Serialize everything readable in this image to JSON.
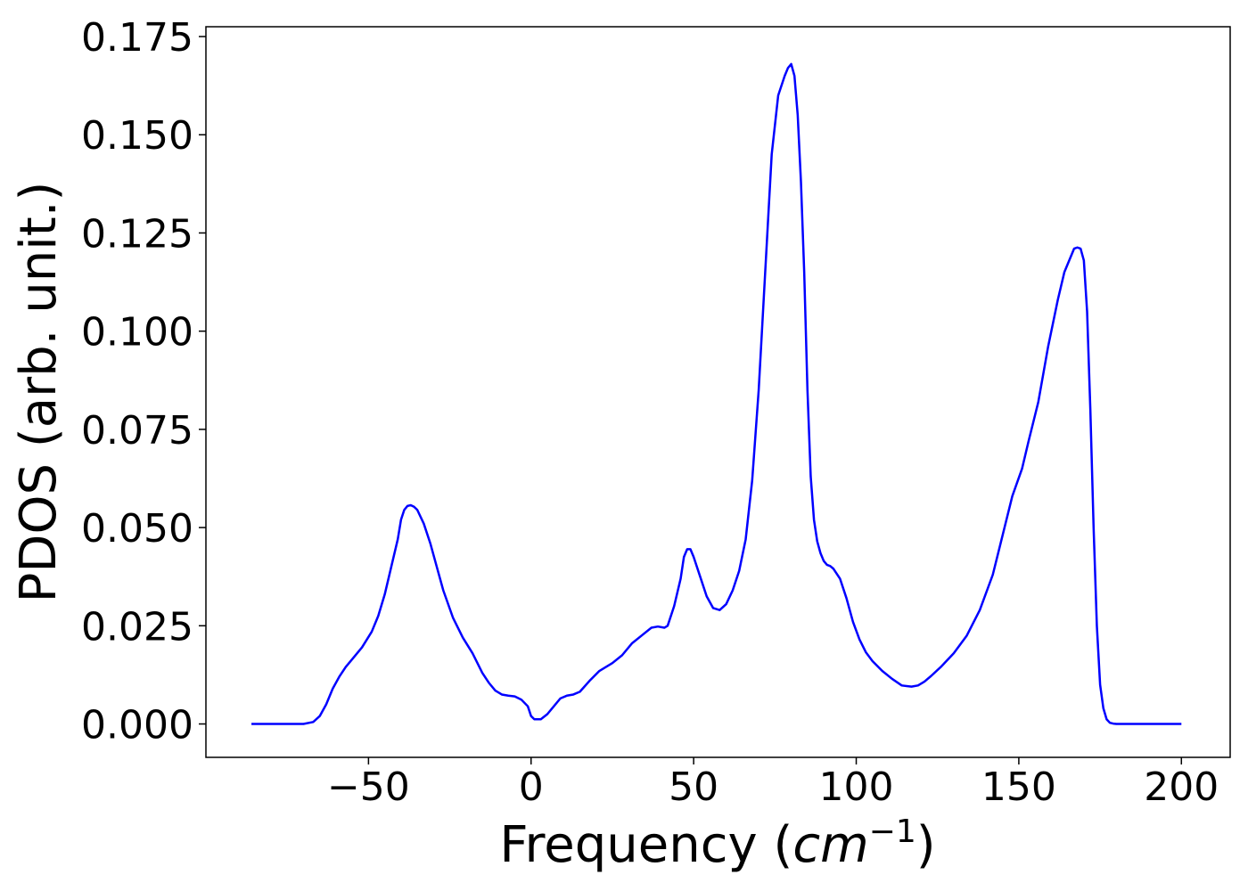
{
  "chart_data": {
    "type": "line",
    "title": "",
    "xlabel_prefix": "Frequency (",
    "xlabel_unit": "cm",
    "xlabel_exponent": "−1",
    "xlabel_suffix": ")",
    "ylabel": "PDOS (arb. unit.)",
    "xlim": [
      -100,
      215
    ],
    "ylim": [
      -0.0085,
      0.1775
    ],
    "xticks": [
      -50,
      0,
      50,
      100,
      150,
      200
    ],
    "xtick_labels": [
      "−50",
      "0",
      "50",
      "100",
      "150",
      "200"
    ],
    "yticks": [
      0.0,
      0.025,
      0.05,
      0.075,
      0.1,
      0.125,
      0.15,
      0.175
    ],
    "ytick_labels": [
      "0.000",
      "0.025",
      "0.050",
      "0.075",
      "0.100",
      "0.125",
      "0.150",
      "0.175"
    ],
    "grid": false,
    "legend": "none",
    "series": [
      {
        "color": "#0000ff",
        "x": [
          -86,
          -70,
          -67,
          -65,
          -63,
          -61,
          -59,
          -57,
          -55,
          -52,
          -49,
          -47,
          -45,
          -43,
          -41,
          -40,
          -39,
          -38,
          -37,
          -36,
          -35,
          -33,
          -31,
          -29,
          -27,
          -24,
          -21,
          -18,
          -15,
          -13,
          -11,
          -9,
          -7,
          -5,
          -3,
          -1,
          0,
          1,
          3,
          5,
          7,
          9,
          11,
          13,
          15,
          18,
          21,
          25,
          28,
          31,
          34,
          37,
          39,
          41,
          42,
          44,
          46,
          47,
          48,
          49,
          50,
          52,
          54,
          56,
          58,
          60,
          62,
          64,
          66,
          68,
          70,
          72,
          74,
          76,
          78,
          79,
          80,
          81,
          82,
          83,
          84,
          85,
          86,
          87,
          88,
          89,
          90,
          91,
          92,
          93,
          95,
          97,
          99,
          101,
          103,
          105,
          108,
          111,
          114,
          117,
          119,
          121,
          123,
          126,
          130,
          134,
          138,
          142,
          145,
          148,
          151,
          153,
          156,
          159,
          162,
          164,
          166,
          167,
          168,
          169,
          170,
          171,
          172,
          173,
          174,
          175,
          176,
          177,
          178,
          179,
          180,
          182,
          185,
          200
        ],
        "y": [
          0.0,
          0.0,
          0.0005,
          0.002,
          0.005,
          0.009,
          0.012,
          0.0145,
          0.0165,
          0.0195,
          0.0235,
          0.0275,
          0.033,
          0.04,
          0.047,
          0.052,
          0.0545,
          0.0555,
          0.0557,
          0.0553,
          0.0545,
          0.051,
          0.046,
          0.04,
          0.034,
          0.027,
          0.022,
          0.018,
          0.013,
          0.0105,
          0.0085,
          0.0075,
          0.0072,
          0.007,
          0.0062,
          0.0045,
          0.002,
          0.0012,
          0.0012,
          0.0025,
          0.0045,
          0.0065,
          0.0072,
          0.0075,
          0.0082,
          0.011,
          0.0135,
          0.0155,
          0.0175,
          0.0205,
          0.0225,
          0.0245,
          0.0248,
          0.0245,
          0.025,
          0.03,
          0.037,
          0.0425,
          0.0445,
          0.0445,
          0.0425,
          0.0375,
          0.0325,
          0.0295,
          0.029,
          0.0305,
          0.034,
          0.039,
          0.047,
          0.062,
          0.085,
          0.115,
          0.145,
          0.16,
          0.165,
          0.167,
          0.168,
          0.165,
          0.155,
          0.138,
          0.115,
          0.085,
          0.063,
          0.052,
          0.0465,
          0.0435,
          0.0415,
          0.0405,
          0.0402,
          0.0395,
          0.037,
          0.032,
          0.026,
          0.0215,
          0.0182,
          0.016,
          0.0135,
          0.0115,
          0.0098,
          0.0095,
          0.0098,
          0.0108,
          0.0122,
          0.0145,
          0.018,
          0.0225,
          0.029,
          0.038,
          0.048,
          0.058,
          0.065,
          0.072,
          0.082,
          0.096,
          0.108,
          0.115,
          0.119,
          0.121,
          0.1213,
          0.121,
          0.118,
          0.105,
          0.08,
          0.05,
          0.025,
          0.01,
          0.004,
          0.0012,
          0.0003,
          0.0001,
          0.0,
          0.0,
          0.0,
          0.0
        ]
      }
    ]
  }
}
